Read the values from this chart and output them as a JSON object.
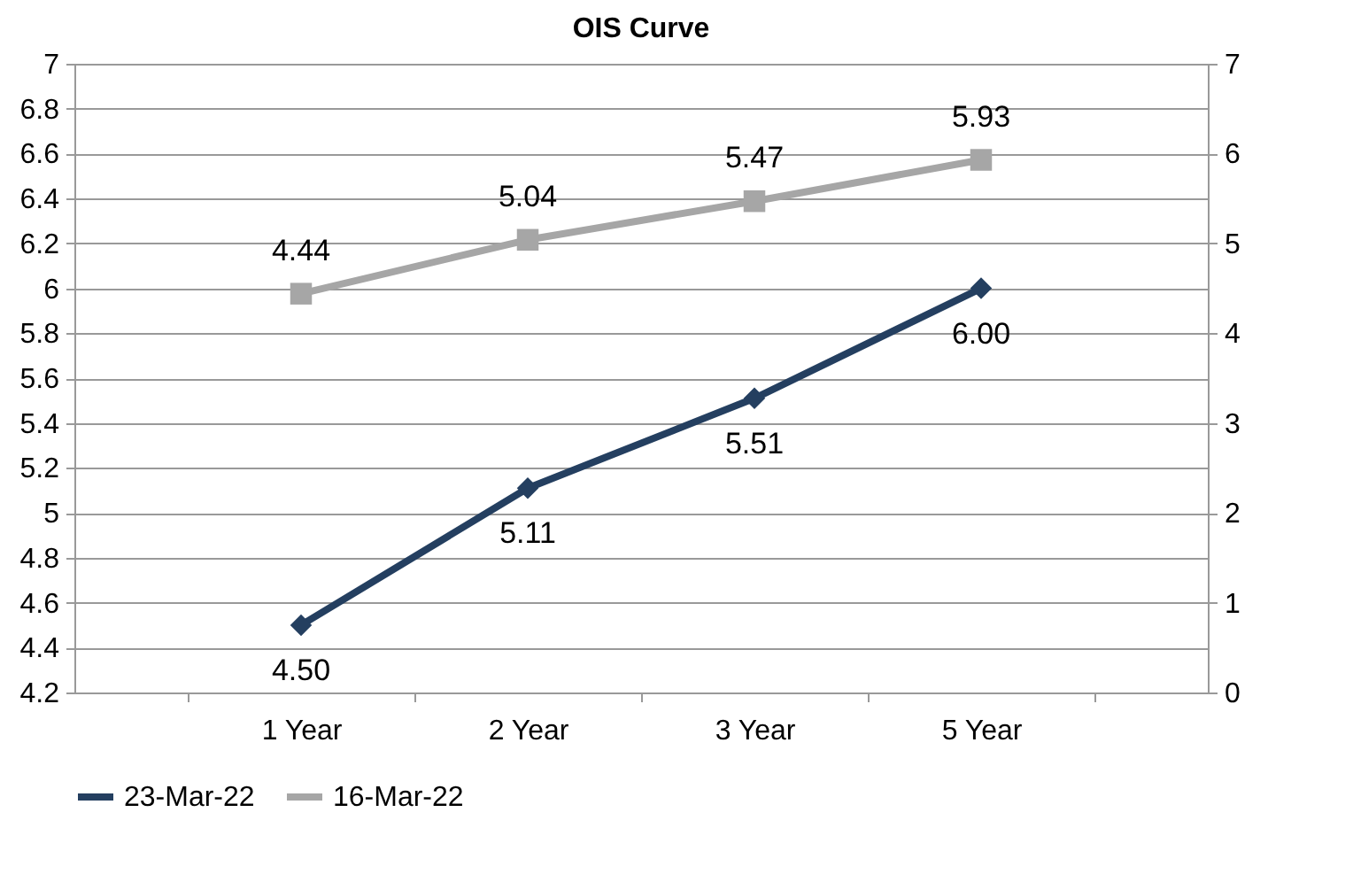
{
  "chart_data": {
    "type": "line",
    "title": "OIS Curve",
    "categories": [
      "1 Year",
      "2 Year",
      "3 Year",
      "5 Year"
    ],
    "series": [
      {
        "name": "23-Mar-22",
        "color": "#243f60",
        "values": [
          4.5,
          5.11,
          5.51,
          6.0
        ],
        "value_labels": [
          "4.50",
          "5.11",
          "5.51",
          "6.00"
        ],
        "marker": "diamond"
      },
      {
        "name": "16-Mar-22",
        "color": "#a6a6a6",
        "values": [
          4.44,
          5.04,
          5.47,
          5.93
        ],
        "value_labels": [
          "4.44",
          "5.04",
          "5.47",
          "5.93"
        ],
        "marker": "square",
        "axis": "y2"
      }
    ],
    "ylim": [
      4.2,
      7
    ],
    "yticks": [
      4.2,
      4.4,
      4.6,
      4.8,
      5,
      5.2,
      5.4,
      5.6,
      5.8,
      6,
      6.2,
      6.4,
      6.6,
      6.8,
      7
    ],
    "y2lim": [
      0,
      7
    ],
    "y2ticks": [
      0,
      1,
      2,
      3,
      4,
      5,
      6,
      7
    ],
    "grid": "y",
    "legend": "bottom",
    "line_style": "solid"
  }
}
